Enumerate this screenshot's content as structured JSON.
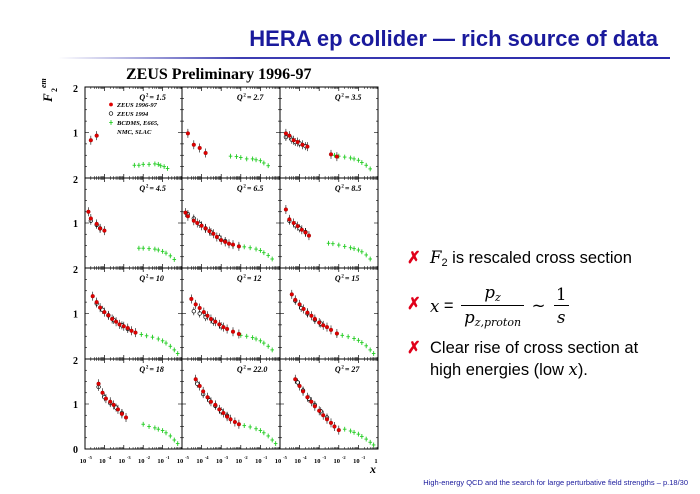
{
  "slide": {
    "title": "HERA ep collider — rich source of data",
    "footer": "High-energy QCD and the search for large perturbative field strengths – p.18/30"
  },
  "bullets": {
    "mark": "✗",
    "b1_sym": "F",
    "b1_sub": "2",
    "b1_text": " is rescaled cross section",
    "b2_x": "x",
    "b2_eq": " = ",
    "b2_num": "p",
    "b2_num_sub": "z",
    "b2_den": "p",
    "b2_den_sub": "z,proton",
    "b2_sim": " ∼ ",
    "b2_num2": "1",
    "b2_den2": "s",
    "b3_text1": "Clear rise of cross section at",
    "b3_text2": "high energies (low ",
    "b3_x": "x",
    "b3_text3": ")."
  },
  "colors": {
    "title": "#1a1a9c",
    "bullet_mark": "#e0001a",
    "zeus9697": "#e00000",
    "zeus94": "#000000",
    "fixed_target": "#22cc22"
  },
  "chart_data": {
    "type": "scatter",
    "title": "ZEUS Preliminary 1996-97",
    "ylabel_main": "F",
    "ylabel_sub": "2",
    "ylabel_sup": "em",
    "xlabel": "x",
    "x_scale": "log",
    "xlim": [
      1e-05,
      1
    ],
    "ylim": [
      0,
      2
    ],
    "y_ticks": [
      "0",
      "1",
      "2"
    ],
    "x_tick_labels": [
      {
        "base": "10",
        "exp": "-5"
      },
      {
        "base": "10",
        "exp": "-4"
      },
      {
        "base": "10",
        "exp": "-3"
      },
      {
        "base": "10",
        "exp": "-2"
      },
      {
        "base": "10",
        "exp": "-1"
      },
      {
        "base": "1",
        "exp": ""
      }
    ],
    "legend": [
      {
        "label": "ZEUS 1996-97",
        "marker": "filled-circle",
        "color": "#e00000"
      },
      {
        "label": "ZEUS 1994",
        "marker": "open-circle",
        "color": "#000000"
      },
      {
        "label": "BCDMS, E665,",
        "marker": "star",
        "color": "#22cc22"
      },
      {
        "label": "NMC, SLAC",
        "marker": "none",
        "color": "#22cc22"
      }
    ],
    "legend_position": "top-left of first panel",
    "panels": [
      {
        "q2": "1.5",
        "zeus": [
          [
            2e-05,
            0.83
          ],
          [
            4e-05,
            0.93
          ]
        ],
        "zeus94": [],
        "fixed": [
          [
            0.0035,
            0.28
          ],
          [
            0.006,
            0.28
          ],
          [
            0.01,
            0.3
          ],
          [
            0.02,
            0.3
          ],
          [
            0.04,
            0.31
          ],
          [
            0.06,
            0.3
          ],
          [
            0.08,
            0.27
          ],
          [
            0.12,
            0.25
          ],
          [
            0.18,
            0.21
          ]
        ]
      },
      {
        "q2": "2.7",
        "zeus": [
          [
            2e-05,
            0.98
          ],
          [
            4e-05,
            0.73
          ],
          [
            8e-05,
            0.66
          ],
          [
            0.00016,
            0.55
          ]
        ],
        "zeus94": [],
        "fixed": [
          [
            0.003,
            0.48
          ],
          [
            0.006,
            0.47
          ],
          [
            0.01,
            0.45
          ],
          [
            0.02,
            0.42
          ],
          [
            0.04,
            0.42
          ],
          [
            0.06,
            0.4
          ],
          [
            0.1,
            0.38
          ],
          [
            0.15,
            0.33
          ],
          [
            0.25,
            0.27
          ]
        ]
      },
      {
        "q2": "3.5",
        "zeus": [
          [
            2e-05,
            0.98
          ],
          [
            3e-05,
            0.93
          ],
          [
            5e-05,
            0.83
          ],
          [
            8e-05,
            0.79
          ],
          [
            0.00014,
            0.73
          ],
          [
            0.00025,
            0.69
          ],
          [
            0.004,
            0.52
          ],
          [
            0.008,
            0.47
          ]
        ],
        "zeus94": [
          [
            2e-05,
            0.9
          ],
          [
            4e-05,
            0.84
          ],
          [
            6e-05,
            0.79
          ],
          [
            0.0001,
            0.76
          ],
          [
            0.0002,
            0.7
          ]
        ],
        "fixed": [
          [
            0.006,
            0.5
          ],
          [
            0.01,
            0.48
          ],
          [
            0.02,
            0.46
          ],
          [
            0.04,
            0.44
          ],
          [
            0.06,
            0.42
          ],
          [
            0.1,
            0.39
          ],
          [
            0.15,
            0.34
          ],
          [
            0.25,
            0.28
          ],
          [
            0.4,
            0.2
          ]
        ]
      },
      {
        "q2": "4.5",
        "zeus": [
          [
            1.5e-05,
            1.25
          ],
          [
            2e-05,
            1.1
          ],
          [
            4e-05,
            0.98
          ],
          [
            6e-05,
            0.88
          ],
          [
            0.0001,
            0.83
          ]
        ],
        "zeus94": [
          [
            2e-05,
            1.05
          ],
          [
            4e-05,
            0.96
          ],
          [
            6e-05,
            0.88
          ]
        ],
        "fixed": [
          [
            0.006,
            0.44
          ],
          [
            0.01,
            0.44
          ],
          [
            0.02,
            0.43
          ],
          [
            0.04,
            0.42
          ],
          [
            0.06,
            0.4
          ],
          [
            0.1,
            0.37
          ],
          [
            0.15,
            0.33
          ],
          [
            0.25,
            0.27
          ],
          [
            0.4,
            0.19
          ]
        ]
      },
      {
        "q2": "6.5",
        "zeus": [
          [
            1.5e-05,
            1.23
          ],
          [
            2e-05,
            1.15
          ],
          [
            4e-05,
            1.05
          ],
          [
            6e-05,
            1.0
          ],
          [
            0.0001,
            0.94
          ],
          [
            0.00016,
            0.88
          ],
          [
            0.00025,
            0.82
          ],
          [
            0.0004,
            0.76
          ],
          [
            0.0006,
            0.69
          ],
          [
            0.001,
            0.62
          ],
          [
            0.0016,
            0.58
          ],
          [
            0.0025,
            0.54
          ],
          [
            0.004,
            0.52
          ],
          [
            0.008,
            0.48
          ]
        ],
        "zeus94": [
          [
            2e-05,
            1.2
          ],
          [
            4e-05,
            1.1
          ],
          [
            8e-05,
            0.98
          ],
          [
            0.00016,
            0.88
          ],
          [
            0.0003,
            0.8
          ],
          [
            0.0008,
            0.68
          ],
          [
            0.0016,
            0.6
          ]
        ],
        "fixed": [
          [
            0.004,
            0.5
          ],
          [
            0.008,
            0.49
          ],
          [
            0.015,
            0.47
          ],
          [
            0.03,
            0.45
          ],
          [
            0.06,
            0.42
          ],
          [
            0.1,
            0.39
          ],
          [
            0.15,
            0.34
          ],
          [
            0.25,
            0.28
          ],
          [
            0.4,
            0.2
          ]
        ]
      },
      {
        "q2": "8.5",
        "zeus": [
          [
            2e-05,
            1.3
          ],
          [
            3e-05,
            1.08
          ],
          [
            5e-05,
            1.0
          ],
          [
            8e-05,
            0.93
          ],
          [
            0.00013,
            0.85
          ],
          [
            0.0002,
            0.79
          ],
          [
            0.0003,
            0.72
          ]
        ],
        "zeus94": [
          [
            3e-05,
            1.05
          ],
          [
            6e-05,
            0.95
          ],
          [
            0.0001,
            0.88
          ],
          [
            0.0002,
            0.8
          ]
        ],
        "fixed": [
          [
            0.003,
            0.55
          ],
          [
            0.005,
            0.54
          ],
          [
            0.01,
            0.51
          ],
          [
            0.02,
            0.48
          ],
          [
            0.04,
            0.45
          ],
          [
            0.06,
            0.43
          ],
          [
            0.1,
            0.4
          ],
          [
            0.15,
            0.36
          ],
          [
            0.25,
            0.29
          ],
          [
            0.4,
            0.2
          ]
        ]
      },
      {
        "q2": "10",
        "zeus": [
          [
            2.5e-05,
            1.38
          ],
          [
            4e-05,
            1.25
          ],
          [
            6e-05,
            1.13
          ],
          [
            0.0001,
            1.03
          ],
          [
            0.00016,
            0.96
          ],
          [
            0.00025,
            0.88
          ],
          [
            0.0004,
            0.82
          ],
          [
            0.0006,
            0.76
          ],
          [
            0.001,
            0.72
          ],
          [
            0.0016,
            0.68
          ],
          [
            0.0025,
            0.62
          ],
          [
            0.004,
            0.58
          ]
        ],
        "zeus94": [
          [
            4e-05,
            1.22
          ],
          [
            8e-05,
            1.08
          ],
          [
            0.00016,
            0.96
          ],
          [
            0.0003,
            0.86
          ],
          [
            0.0008,
            0.74
          ],
          [
            0.0016,
            0.66
          ]
        ],
        "fixed": [
          [
            0.008,
            0.54
          ],
          [
            0.015,
            0.51
          ],
          [
            0.03,
            0.48
          ],
          [
            0.06,
            0.44
          ],
          [
            0.1,
            0.4
          ],
          [
            0.15,
            0.35
          ],
          [
            0.25,
            0.28
          ],
          [
            0.4,
            0.2
          ],
          [
            0.6,
            0.12
          ]
        ]
      },
      {
        "q2": "12",
        "zeus": [
          [
            3e-05,
            1.32
          ],
          [
            5e-05,
            1.2
          ],
          [
            8e-05,
            1.12
          ],
          [
            0.00013,
            1.03
          ],
          [
            0.0002,
            0.95
          ],
          [
            0.0003,
            0.88
          ],
          [
            0.0005,
            0.82
          ],
          [
            0.0008,
            0.76
          ],
          [
            0.0013,
            0.7
          ],
          [
            0.002,
            0.66
          ],
          [
            0.004,
            0.6
          ],
          [
            0.008,
            0.55
          ]
        ],
        "zeus94": [
          [
            4e-05,
            1.05
          ],
          [
            8e-05,
            1.0
          ],
          [
            0.00016,
            0.92
          ],
          [
            0.0004,
            0.82
          ],
          [
            0.001,
            0.72
          ]
        ],
        "fixed": [
          [
            0.01,
            0.52
          ],
          [
            0.02,
            0.5
          ],
          [
            0.04,
            0.47
          ],
          [
            0.06,
            0.44
          ],
          [
            0.1,
            0.4
          ],
          [
            0.15,
            0.35
          ],
          [
            0.25,
            0.28
          ],
          [
            0.4,
            0.2
          ]
        ]
      },
      {
        "q2": "15",
        "zeus": [
          [
            4e-05,
            1.42
          ],
          [
            6e-05,
            1.3
          ],
          [
            0.0001,
            1.2
          ],
          [
            0.00016,
            1.1
          ],
          [
            0.00025,
            1.02
          ],
          [
            0.0004,
            0.95
          ],
          [
            0.0006,
            0.88
          ],
          [
            0.001,
            0.8
          ],
          [
            0.0016,
            0.74
          ],
          [
            0.0025,
            0.7
          ],
          [
            0.004,
            0.64
          ],
          [
            0.008,
            0.56
          ]
        ],
        "zeus94": [
          [
            6e-05,
            1.28
          ],
          [
            0.00012,
            1.12
          ],
          [
            0.00025,
            1.0
          ],
          [
            0.0006,
            0.86
          ],
          [
            0.0012,
            0.78
          ]
        ],
        "fixed": [
          [
            0.008,
            0.55
          ],
          [
            0.015,
            0.52
          ],
          [
            0.03,
            0.49
          ],
          [
            0.06,
            0.45
          ],
          [
            0.1,
            0.41
          ],
          [
            0.15,
            0.36
          ],
          [
            0.25,
            0.29
          ],
          [
            0.4,
            0.2
          ],
          [
            0.6,
            0.12
          ]
        ]
      },
      {
        "q2": "18",
        "zeus": [
          [
            5e-05,
            1.45
          ],
          [
            8e-05,
            1.25
          ],
          [
            0.00012,
            1.12
          ],
          [
            0.0002,
            1.05
          ],
          [
            0.0003,
            0.98
          ],
          [
            0.0005,
            0.88
          ],
          [
            0.0008,
            0.78
          ],
          [
            0.0013,
            0.7
          ]
        ],
        "zeus94": [
          [
            5e-05,
            1.38
          ],
          [
            0.0001,
            1.15
          ],
          [
            0.0002,
            1.02
          ],
          [
            0.0004,
            0.92
          ],
          [
            0.0008,
            0.8
          ]
        ],
        "fixed": [
          [
            0.01,
            0.55
          ],
          [
            0.02,
            0.5
          ],
          [
            0.04,
            0.47
          ],
          [
            0.06,
            0.44
          ],
          [
            0.1,
            0.41
          ],
          [
            0.15,
            0.36
          ],
          [
            0.25,
            0.29
          ],
          [
            0.4,
            0.2
          ],
          [
            0.6,
            0.12
          ]
        ]
      },
      {
        "q2": "22.0",
        "zeus": [
          [
            5e-05,
            1.55
          ],
          [
            8e-05,
            1.4
          ],
          [
            0.00012,
            1.28
          ],
          [
            0.0002,
            1.15
          ],
          [
            0.0003,
            1.05
          ],
          [
            0.0005,
            0.98
          ],
          [
            0.0008,
            0.88
          ],
          [
            0.0013,
            0.8
          ],
          [
            0.002,
            0.72
          ],
          [
            0.003,
            0.66
          ],
          [
            0.005,
            0.6
          ],
          [
            0.008,
            0.55
          ]
        ],
        "zeus94": [
          [
            6e-05,
            1.45
          ],
          [
            0.00012,
            1.22
          ],
          [
            0.00025,
            1.08
          ],
          [
            0.0005,
            0.96
          ],
          [
            0.001,
            0.84
          ],
          [
            0.002,
            0.74
          ]
        ],
        "fixed": [
          [
            0.015,
            0.52
          ],
          [
            0.03,
            0.49
          ],
          [
            0.06,
            0.45
          ],
          [
            0.1,
            0.41
          ],
          [
            0.15,
            0.36
          ],
          [
            0.25,
            0.29
          ],
          [
            0.4,
            0.2
          ],
          [
            0.6,
            0.12
          ]
        ]
      },
      {
        "q2": "27",
        "zeus": [
          [
            6e-05,
            1.55
          ],
          [
            0.0001,
            1.4
          ],
          [
            0.00015,
            1.28
          ],
          [
            0.00025,
            1.15
          ],
          [
            0.0004,
            1.05
          ],
          [
            0.0006,
            0.95
          ],
          [
            0.001,
            0.85
          ],
          [
            0.0016,
            0.75
          ],
          [
            0.0025,
            0.66
          ],
          [
            0.004,
            0.58
          ],
          [
            0.006,
            0.5
          ],
          [
            0.01,
            0.42
          ]
        ],
        "zeus94": [
          [
            8e-05,
            1.48
          ],
          [
            0.00015,
            1.3
          ],
          [
            0.0003,
            1.12
          ],
          [
            0.0006,
            0.98
          ],
          [
            0.0012,
            0.84
          ],
          [
            0.0025,
            0.7
          ]
        ],
        "fixed": [
          [
            0.02,
            0.44
          ],
          [
            0.04,
            0.4
          ],
          [
            0.06,
            0.37
          ],
          [
            0.1,
            0.33
          ],
          [
            0.15,
            0.28
          ],
          [
            0.25,
            0.22
          ],
          [
            0.4,
            0.15
          ],
          [
            0.6,
            0.09
          ]
        ]
      }
    ]
  }
}
